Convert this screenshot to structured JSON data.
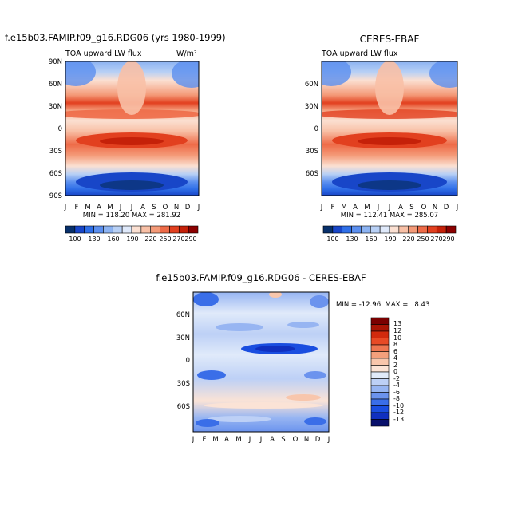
{
  "chart_data": [
    {
      "type": "heatmap",
      "title": "f.e15b03.FAMIP.f09_g16.RDG06 (yrs 1980-1999)",
      "subtitle": "TOA upward LW flux",
      "units": "W/m²",
      "x": [
        "J",
        "F",
        "M",
        "A",
        "M",
        "J",
        "J",
        "A",
        "S",
        "O",
        "N",
        "D",
        "J"
      ],
      "y_ticks": [
        "90N",
        "60N",
        "30N",
        "0",
        "30S",
        "60S",
        "90S"
      ],
      "stats": "MIN = 118.20  MAX = 281.92",
      "colorbar": [
        100,
        130,
        160,
        190,
        220,
        250,
        270,
        290
      ]
    },
    {
      "type": "heatmap",
      "title": "CERES-EBAF",
      "subtitle": "TOA upward LW flux",
      "x": [
        "J",
        "F",
        "M",
        "A",
        "M",
        "J",
        "J",
        "A",
        "S",
        "O",
        "N",
        "D",
        "J"
      ],
      "y_ticks": [
        "60N",
        "30N",
        "0",
        "30S",
        "60S"
      ],
      "stats": "MIN = 112.41  MAX = 285.07",
      "colorbar": [
        100,
        130,
        160,
        190,
        220,
        250,
        270,
        290
      ]
    },
    {
      "type": "heatmap",
      "title": "f.e15b03.FAMIP.f09_g16.RDG06 - CERES-EBAF",
      "x": [
        "J",
        "F",
        "M",
        "A",
        "M",
        "J",
        "J",
        "A",
        "S",
        "O",
        "N",
        "D",
        "J"
      ],
      "y_ticks": [
        "60N",
        "30N",
        "0",
        "30S",
        "60S"
      ],
      "stats": "MIN = -12.96  MAX =   8.43",
      "colorbar": [
        13,
        12,
        10,
        8,
        6,
        4,
        2,
        0,
        -2,
        -4,
        -6,
        -8,
        -10,
        -12,
        -13
      ]
    }
  ],
  "colors": {
    "div14": [
      "#08306b",
      "#1846c8",
      "#2f6fe8",
      "#5b8fef",
      "#8cb3f2",
      "#b8d0f5",
      "#dfe9fa",
      "#fbe0d2",
      "#f8c0a6",
      "#f49a78",
      "#ee6b48",
      "#e2401f",
      "#c52109",
      "#8b0000"
    ],
    "diff16": [
      "#08106b",
      "#1030c0",
      "#1a4ee0",
      "#3a6ee8",
      "#6b93ee",
      "#97b5f2",
      "#bdd0f6",
      "#e0eafa",
      "#fbe3d6",
      "#f8c6ac",
      "#f4a07c",
      "#ef7650",
      "#e84a25",
      "#d22a0d",
      "#a81404",
      "#7a0000"
    ]
  }
}
